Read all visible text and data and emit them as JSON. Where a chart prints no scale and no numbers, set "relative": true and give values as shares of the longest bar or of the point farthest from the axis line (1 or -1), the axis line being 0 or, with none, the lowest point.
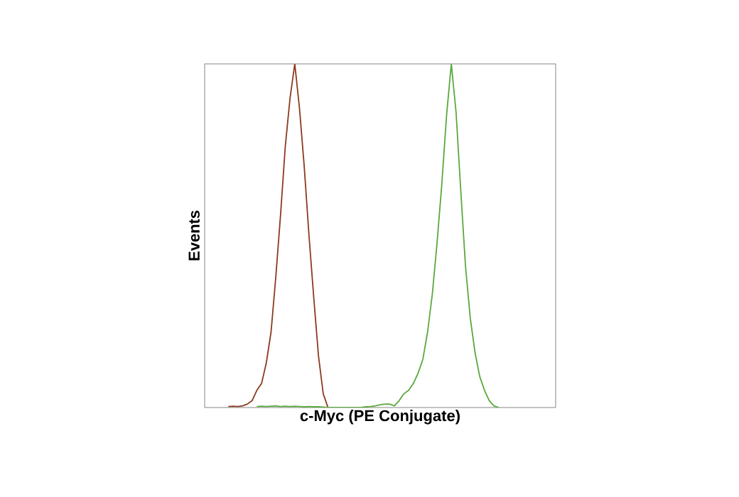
{
  "chart_data": {
    "type": "line",
    "relative": true,
    "xlabel": "c-Myc (PE Conjugate)",
    "ylabel": "Events",
    "categories": [
      null,
      null,
      null,
      null,
      null,
      null,
      null,
      null,
      null,
      null,
      null,
      null,
      null,
      null,
      null,
      null,
      null,
      null,
      null,
      null,
      null,
      null,
      null,
      null,
      null,
      null,
      null,
      null,
      null,
      null,
      null,
      null,
      null,
      null,
      null,
      null,
      null,
      null,
      null,
      null,
      null,
      null,
      null,
      null,
      null,
      null,
      null,
      null,
      null,
      null,
      null,
      null,
      null,
      null,
      null,
      null,
      null,
      null,
      null,
      null,
      null,
      null,
      null,
      null,
      null,
      null,
      null,
      null,
      null,
      null,
      null,
      null,
      null,
      null,
      null
    ],
    "series": [
      {
        "color": "#8b3a1e",
        "values": [
          null,
          null,
          null,
          null,
          null,
          0.003,
          0.004,
          0.003,
          0.005,
          0.01,
          0.02,
          0.05,
          0.07,
          0.13,
          0.22,
          0.38,
          0.56,
          0.76,
          0.9,
          1.0,
          0.87,
          0.7,
          0.5,
          0.32,
          0.15,
          0.04,
          0,
          null,
          null,
          null,
          null,
          null,
          null,
          null,
          null,
          null,
          null,
          null,
          null,
          null,
          null,
          null,
          null,
          null,
          null,
          null,
          null,
          null,
          null,
          null,
          null,
          null,
          null,
          null,
          null,
          null,
          null,
          null,
          null,
          null,
          null,
          null,
          null,
          null,
          null,
          null,
          null,
          null,
          null,
          null,
          null,
          null,
          null,
          null,
          null
        ]
      },
      {
        "color": "#5aa83c",
        "values": [
          null,
          null,
          null,
          null,
          null,
          null,
          null,
          null,
          null,
          null,
          null,
          0.003,
          0.004,
          0.003,
          0.004,
          0.005,
          0.003,
          0.004,
          0.003,
          0.004,
          0.003,
          0.002,
          0.003,
          0.002,
          0.002,
          0.001,
          0,
          0,
          0,
          0,
          0,
          0,
          0,
          0,
          0.002,
          0.003,
          0.005,
          0.008,
          0.01,
          0.01,
          0.005,
          0.02,
          0.04,
          0.05,
          0.07,
          0.1,
          0.14,
          0.22,
          0.33,
          0.48,
          0.65,
          0.85,
          1.0,
          0.86,
          0.63,
          0.41,
          0.26,
          0.16,
          0.09,
          0.05,
          0.02,
          0.005,
          0,
          null,
          null,
          null,
          null,
          null,
          null,
          null,
          null,
          null,
          null,
          null,
          null
        ]
      }
    ]
  }
}
